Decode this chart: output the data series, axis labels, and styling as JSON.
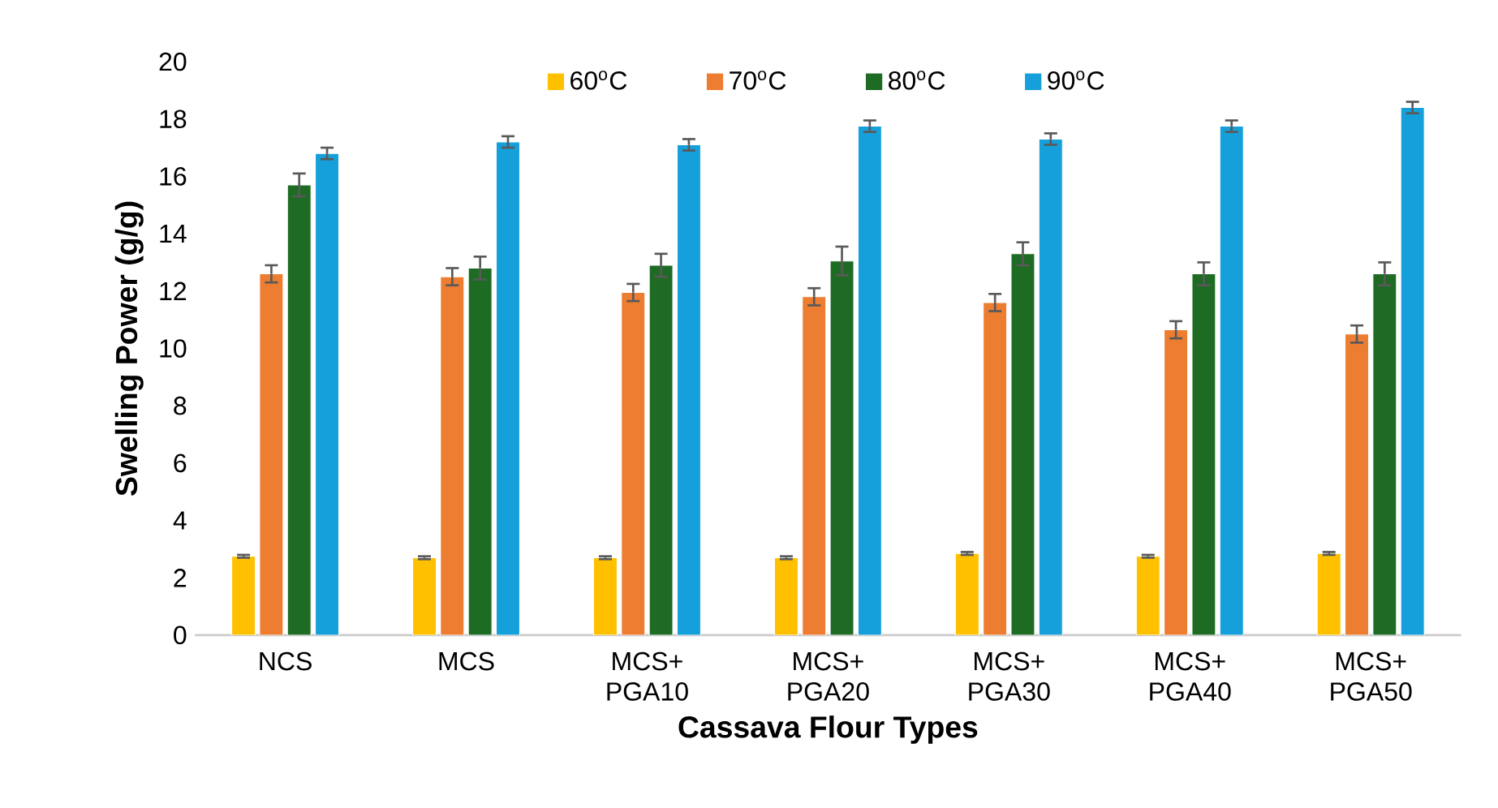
{
  "chart_data": {
    "type": "bar",
    "xlabel": "Cassava Flour Types",
    "ylabel": "Swelling Power (g/g)",
    "categories": [
      "NCS",
      "MCS",
      "MCS+ PGA10",
      "MCS+ PGA20",
      "MCS+ PGA30",
      "MCS+ PGA40",
      "MCS+ PGA50"
    ],
    "series": [
      {
        "name": "60$^{o}$C",
        "color": "#ffc000",
        "values": [
          2.75,
          2.7,
          2.7,
          2.7,
          2.85,
          2.75,
          2.85
        ],
        "errors": [
          0.05,
          0.05,
          0.05,
          0.05,
          0.05,
          0.05,
          0.05
        ]
      },
      {
        "name": "70$^{o}$C",
        "color": "#ed7d31",
        "values": [
          12.6,
          12.5,
          11.95,
          11.8,
          11.6,
          10.65,
          10.5
        ],
        "errors": [
          0.3,
          0.3,
          0.3,
          0.3,
          0.3,
          0.3,
          0.3
        ]
      },
      {
        "name": "80$^{o}$C",
        "color": "#1e6b24",
        "values": [
          15.7,
          12.8,
          12.9,
          13.05,
          13.3,
          12.6,
          12.6
        ],
        "errors": [
          0.4,
          0.4,
          0.4,
          0.5,
          0.4,
          0.4,
          0.4
        ]
      },
      {
        "name": "90$^{o}$C",
        "color": "#15a0db",
        "values": [
          16.8,
          17.2,
          17.1,
          17.75,
          17.3,
          17.75,
          18.4
        ],
        "errors": [
          0.2,
          0.2,
          0.2,
          0.2,
          0.2,
          0.2,
          0.2
        ]
      }
    ],
    "ylim": [
      0,
      20
    ],
    "yticks": [
      0,
      2,
      4,
      6,
      8,
      10,
      12,
      14,
      16,
      18,
      20
    ],
    "legend": "top",
    "grid": false
  }
}
